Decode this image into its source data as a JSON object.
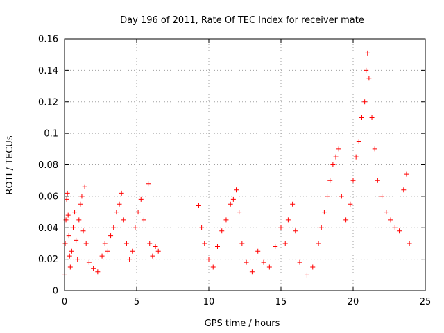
{
  "chart_data": {
    "type": "scatter",
    "title": "Day 196 of 2011, Rate Of TEC Index for receiver mate",
    "xlabel": "GPS time / hours",
    "ylabel": "ROTI / TECUs",
    "xlim": [
      0,
      25
    ],
    "ylim": [
      0,
      0.16
    ],
    "x_ticks": [
      0,
      5,
      10,
      15,
      20,
      25
    ],
    "y_ticks": [
      0,
      0.02,
      0.04,
      0.06,
      0.08,
      0.1,
      0.12,
      0.14,
      0.16
    ],
    "x_tick_labels": [
      "0",
      "5",
      "10",
      "15",
      "20",
      "25"
    ],
    "y_tick_labels": [
      "0",
      "0.02",
      "0.04",
      "0.06",
      "0.08",
      "0.1",
      "0.12",
      "0.14",
      "0.16"
    ],
    "grid": true,
    "marker": "plus",
    "color": "#ff0000",
    "series": [
      {
        "values": [
          [
            0.0,
            0.01
          ],
          [
            0.05,
            0.03
          ],
          [
            0.1,
            0.045
          ],
          [
            0.15,
            0.058
          ],
          [
            0.2,
            0.062
          ],
          [
            0.25,
            0.048
          ],
          [
            0.3,
            0.035
          ],
          [
            0.35,
            0.022
          ],
          [
            0.4,
            0.015
          ],
          [
            0.5,
            0.025
          ],
          [
            0.6,
            0.04
          ],
          [
            0.7,
            0.05
          ],
          [
            0.8,
            0.032
          ],
          [
            0.9,
            0.02
          ],
          [
            1.0,
            0.045
          ],
          [
            1.1,
            0.055
          ],
          [
            1.2,
            0.06
          ],
          [
            1.3,
            0.038
          ],
          [
            1.4,
            0.066
          ],
          [
            1.5,
            0.03
          ],
          [
            1.7,
            0.018
          ],
          [
            2.0,
            0.014
          ],
          [
            2.3,
            0.012
          ],
          [
            2.6,
            0.022
          ],
          [
            2.8,
            0.03
          ],
          [
            3.0,
            0.025
          ],
          [
            3.2,
            0.035
          ],
          [
            3.4,
            0.04
          ],
          [
            3.6,
            0.05
          ],
          [
            3.8,
            0.055
          ],
          [
            3.95,
            0.062
          ],
          [
            4.1,
            0.045
          ],
          [
            4.3,
            0.03
          ],
          [
            4.5,
            0.02
          ],
          [
            4.7,
            0.025
          ],
          [
            4.9,
            0.04
          ],
          [
            5.1,
            0.05
          ],
          [
            5.3,
            0.058
          ],
          [
            5.5,
            0.045
          ],
          [
            5.8,
            0.068
          ],
          [
            5.9,
            0.03
          ],
          [
            6.1,
            0.022
          ],
          [
            6.3,
            0.028
          ],
          [
            6.5,
            0.025
          ],
          [
            9.3,
            0.054
          ],
          [
            9.5,
            0.04
          ],
          [
            9.7,
            0.03
          ],
          [
            10.0,
            0.02
          ],
          [
            10.3,
            0.015
          ],
          [
            10.6,
            0.028
          ],
          [
            10.9,
            0.038
          ],
          [
            11.2,
            0.045
          ],
          [
            11.5,
            0.055
          ],
          [
            11.7,
            0.058
          ],
          [
            11.9,
            0.064
          ],
          [
            12.1,
            0.05
          ],
          [
            12.3,
            0.03
          ],
          [
            12.6,
            0.018
          ],
          [
            13.0,
            0.012
          ],
          [
            13.4,
            0.025
          ],
          [
            13.8,
            0.018
          ],
          [
            14.2,
            0.015
          ],
          [
            14.6,
            0.028
          ],
          [
            15.0,
            0.04
          ],
          [
            15.3,
            0.03
          ],
          [
            15.5,
            0.045
          ],
          [
            15.8,
            0.055
          ],
          [
            16.0,
            0.038
          ],
          [
            16.3,
            0.018
          ],
          [
            16.8,
            0.01
          ],
          [
            17.2,
            0.015
          ],
          [
            17.6,
            0.03
          ],
          [
            17.8,
            0.04
          ],
          [
            18.0,
            0.05
          ],
          [
            18.2,
            0.06
          ],
          [
            18.4,
            0.07
          ],
          [
            18.6,
            0.08
          ],
          [
            18.8,
            0.085
          ],
          [
            19.0,
            0.09
          ],
          [
            19.2,
            0.06
          ],
          [
            19.5,
            0.045
          ],
          [
            19.8,
            0.055
          ],
          [
            20.0,
            0.07
          ],
          [
            20.2,
            0.085
          ],
          [
            20.4,
            0.095
          ],
          [
            20.6,
            0.11
          ],
          [
            20.8,
            0.12
          ],
          [
            20.9,
            0.14
          ],
          [
            21.0,
            0.151
          ],
          [
            21.1,
            0.135
          ],
          [
            21.3,
            0.11
          ],
          [
            21.5,
            0.09
          ],
          [
            21.7,
            0.07
          ],
          [
            22.0,
            0.06
          ],
          [
            22.3,
            0.05
          ],
          [
            22.6,
            0.045
          ],
          [
            22.9,
            0.04
          ],
          [
            23.2,
            0.038
          ],
          [
            23.5,
            0.064
          ],
          [
            23.7,
            0.074
          ],
          [
            23.9,
            0.03
          ]
        ]
      }
    ]
  }
}
